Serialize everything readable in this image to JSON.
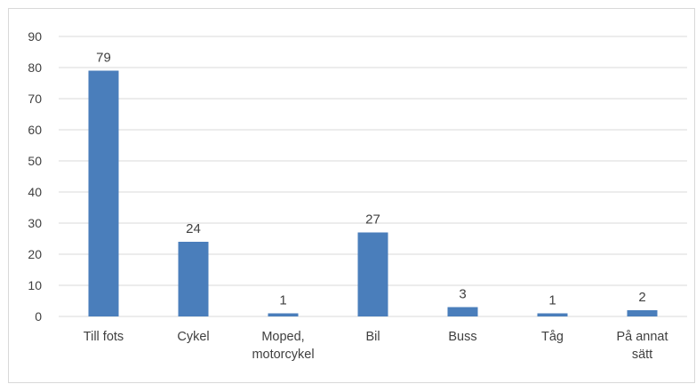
{
  "chart_data": {
    "type": "bar",
    "title": "",
    "xlabel": "",
    "ylabel": "",
    "categories": [
      [
        "Till fots"
      ],
      [
        "Cykel"
      ],
      [
        "Moped,",
        "motorcykel"
      ],
      [
        "Bil"
      ],
      [
        "Buss"
      ],
      [
        "Tåg"
      ],
      [
        "På annat",
        "sätt"
      ]
    ],
    "values": [
      79,
      24,
      1,
      27,
      3,
      1,
      2
    ],
    "ylim": [
      0,
      90
    ],
    "yticks": [
      0,
      10,
      20,
      30,
      40,
      50,
      60,
      70,
      80,
      90
    ],
    "grid": true,
    "legend": "none",
    "bar_color": "#4a7ebb",
    "grid_color": "#d9d9d9",
    "text_color": "#404040"
  }
}
